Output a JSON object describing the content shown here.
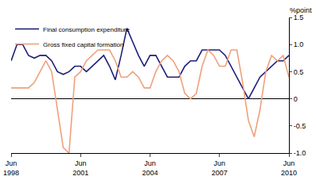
{
  "chart_data": {
    "type": "line",
    "ylabel": "%point",
    "categories": [
      "Jun 1998",
      null,
      null,
      null,
      null,
      null,
      null,
      null,
      null,
      null,
      null,
      null,
      "Jun 2001",
      null,
      null,
      null,
      null,
      null,
      null,
      null,
      null,
      null,
      null,
      null,
      "Jun 2004",
      null,
      null,
      null,
      null,
      null,
      null,
      null,
      null,
      null,
      null,
      null,
      "Jun 2007",
      null,
      null,
      null,
      null,
      null,
      null,
      null,
      null,
      null,
      null,
      null,
      "Jun 2010"
    ],
    "series": [
      {
        "name": "Final consumption expenditure",
        "color": "#1f1f7a",
        "values": [
          0.7,
          1.0,
          1.0,
          0.8,
          0.75,
          0.8,
          0.8,
          0.7,
          0.5,
          0.45,
          0.5,
          0.6,
          0.6,
          0.5,
          0.6,
          0.7,
          0.8,
          0.6,
          0.35,
          0.8,
          1.3,
          1.05,
          0.8,
          0.6,
          0.8,
          0.8,
          0.6,
          0.4,
          0.4,
          0.4,
          0.6,
          0.7,
          0.7,
          0.9,
          0.9,
          0.9,
          0.9,
          0.8,
          0.6,
          0.4,
          0.2,
          0.0,
          0.2,
          0.4,
          0.5,
          0.6,
          0.7,
          0.7,
          0.8
        ]
      },
      {
        "name": "Gross fixed capital formation",
        "color": "#f0a07c",
        "values": [
          0.2,
          0.2,
          0.2,
          0.2,
          0.3,
          0.5,
          0.7,
          0.5,
          -0.2,
          -0.9,
          -1.0,
          0.4,
          0.5,
          0.7,
          0.8,
          0.9,
          0.9,
          0.9,
          0.7,
          0.4,
          0.4,
          0.5,
          0.4,
          0.2,
          0.2,
          0.5,
          0.7,
          0.8,
          0.7,
          0.5,
          0.1,
          0.0,
          0.1,
          0.6,
          0.9,
          0.8,
          0.6,
          0.6,
          0.9,
          0.9,
          0.3,
          -0.4,
          -0.7,
          -0.2,
          0.5,
          0.8,
          0.7,
          0.8,
          0.4
        ]
      }
    ],
    "ylim": [
      -1.0,
      1.5
    ],
    "yticks": [
      {
        "value": -1.0,
        "label": "-1.0"
      },
      {
        "value": -0.5,
        "label": "-0.5"
      },
      0,
      0.5,
      {
        "value": 1.0,
        "label": "1.0"
      },
      1.5
    ],
    "grid": false,
    "legend": "top-left"
  }
}
